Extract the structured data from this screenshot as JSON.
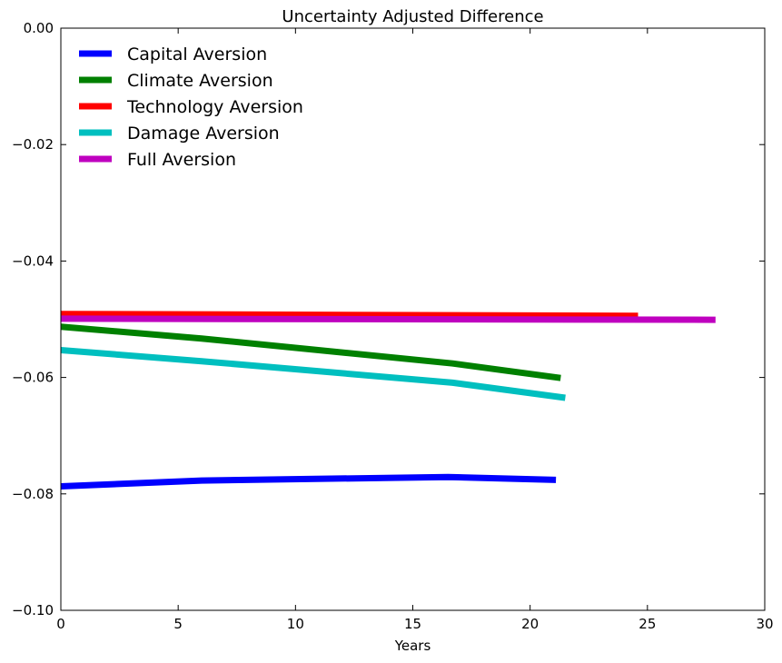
{
  "chart_data": {
    "type": "line",
    "title": "Uncertainty Adjusted Difference",
    "xlabel": "Years",
    "ylabel": "",
    "xlim": [
      0,
      30
    ],
    "ylim": [
      -0.1,
      0.0
    ],
    "x_ticks": [
      0,
      5,
      10,
      15,
      20,
      25,
      30
    ],
    "x_tick_labels": [
      "0",
      "5",
      "10",
      "15",
      "20",
      "25",
      "30"
    ],
    "y_ticks": [
      0.0,
      -0.02,
      -0.04,
      -0.06,
      -0.08,
      -0.1
    ],
    "y_tick_labels": [
      "0.00",
      "−0.02",
      "−0.04",
      "−0.06",
      "−0.08",
      "−0.10"
    ],
    "grid": false,
    "legend_position": "top-left",
    "series": [
      {
        "name": "Capital Aversion",
        "color": "#0000ff",
        "x": [
          0,
          6,
          16.5,
          21.1
        ],
        "y": [
          -0.0787,
          -0.0777,
          -0.0771,
          -0.0776
        ]
      },
      {
        "name": "Climate Aversion",
        "color": "#008000",
        "x": [
          0,
          6,
          16.7,
          21.3
        ],
        "y": [
          -0.0513,
          -0.0533,
          -0.0576,
          -0.0601
        ]
      },
      {
        "name": "Technology Aversion",
        "color": "#ff0000",
        "x": [
          0,
          24.6
        ],
        "y": [
          -0.0491,
          -0.0494
        ]
      },
      {
        "name": "Damage Aversion",
        "color": "#00bfbf",
        "x": [
          0,
          6,
          16.7,
          21.5
        ],
        "y": [
          -0.0553,
          -0.0572,
          -0.0609,
          -0.0635
        ]
      },
      {
        "name": "Full Aversion",
        "color": "#bf00bf",
        "x": [
          0,
          27.9
        ],
        "y": [
          -0.0499,
          -0.0501
        ]
      }
    ]
  }
}
